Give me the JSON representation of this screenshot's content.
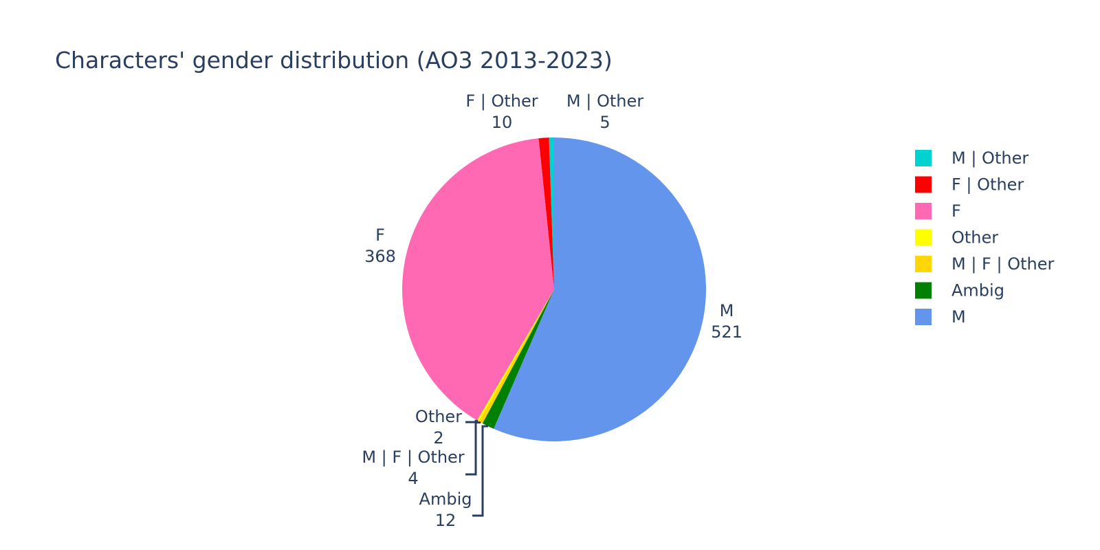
{
  "chart_data": {
    "type": "pie",
    "title": "Characters' gender distribution (AO3 2013-2023)",
    "slices": [
      {
        "label": "M | Other",
        "value": 5,
        "color": "#00d2d2"
      },
      {
        "label": "F | Other",
        "value": 10,
        "color": "#ff0000"
      },
      {
        "label": "F",
        "value": 368,
        "color": "#ff69b4"
      },
      {
        "label": "Other",
        "value": 2,
        "color": "#ffff00"
      },
      {
        "label": "M | F | Other",
        "value": 4,
        "color": "#ffd700"
      },
      {
        "label": "Ambig",
        "value": 12,
        "color": "#008000"
      },
      {
        "label": "M",
        "value": 521,
        "color": "#6495ed"
      }
    ],
    "direction": "counterclockwise",
    "start": "top",
    "legend_position": "right",
    "text_info": "label+value"
  }
}
